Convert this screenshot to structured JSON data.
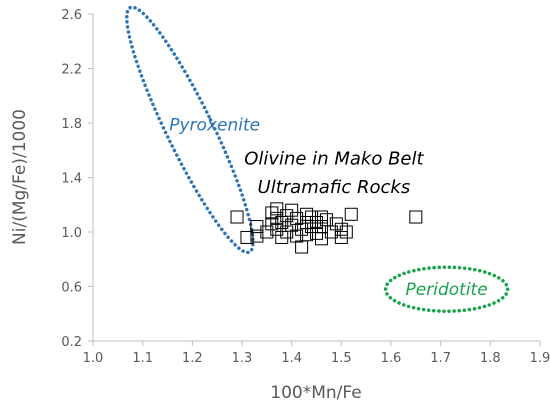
{
  "chart_data": {
    "type": "scatter",
    "title": "",
    "xlabel": "100*Mn/Fe",
    "ylabel": "Ni/(Mg/Fe)/1000",
    "xlim": [
      1.0,
      1.9
    ],
    "ylim": [
      0.2,
      2.6
    ],
    "xticks": [
      "1.0",
      "1.1",
      "1.2",
      "1.3",
      "1.4",
      "1.5",
      "1.6",
      "1.7",
      "1.8",
      "1.9"
    ],
    "yticks": [
      "0.2",
      "0.6",
      "1.0",
      "1.4",
      "1.8",
      "2.2",
      "2.6"
    ],
    "grid": false,
    "legend": "none",
    "marker": "open-square",
    "series": [
      {
        "points": [
          [
            1.29,
            1.11
          ],
          [
            1.31,
            0.96
          ],
          [
            1.33,
            1.04
          ],
          [
            1.33,
            0.97
          ],
          [
            1.35,
            1.0
          ],
          [
            1.36,
            1.14
          ],
          [
            1.36,
            1.06
          ],
          [
            1.37,
            1.17
          ],
          [
            1.37,
            1.1
          ],
          [
            1.37,
            1.02
          ],
          [
            1.38,
            0.96
          ],
          [
            1.38,
            1.07
          ],
          [
            1.39,
            1.12
          ],
          [
            1.39,
            1.0
          ],
          [
            1.4,
            1.16
          ],
          [
            1.4,
            1.05
          ],
          [
            1.41,
            0.97
          ],
          [
            1.41,
            1.1
          ],
          [
            1.42,
            1.02
          ],
          [
            1.42,
            0.89
          ],
          [
            1.43,
            1.13
          ],
          [
            1.43,
            1.07
          ],
          [
            1.43,
            0.98
          ],
          [
            1.44,
            1.04
          ],
          [
            1.44,
            1.11
          ],
          [
            1.45,
            1.07
          ],
          [
            1.45,
            0.99
          ],
          [
            1.46,
            1.11
          ],
          [
            1.46,
            1.04
          ],
          [
            1.46,
            0.95
          ],
          [
            1.47,
            1.09
          ],
          [
            1.48,
            1.0
          ],
          [
            1.49,
            1.06
          ],
          [
            1.5,
            1.02
          ],
          [
            1.5,
            0.96
          ],
          [
            1.51,
            1.0
          ],
          [
            1.52,
            1.13
          ],
          [
            1.65,
            1.11
          ]
        ]
      }
    ],
    "annotations": [
      {
        "text": "Olivine in Mako Belt",
        "x": 1.485,
        "y": 1.54,
        "color": "#000000"
      },
      {
        "text": "Ultramafic Rocks",
        "x": 1.485,
        "y": 1.33,
        "color": "#000000"
      },
      {
        "text": "Pyroxenite",
        "x": 1.245,
        "y": 1.79,
        "color": "#2e75b6"
      },
      {
        "text": "Peridotite",
        "x": 1.712,
        "y": 0.58,
        "color": "#1aa34a"
      }
    ],
    "regions": [
      {
        "label": "Pyroxenite",
        "color": "#2e75b6",
        "center": [
          1.195,
          1.75
        ],
        "rx": 0.2,
        "ry": 0.79,
        "angle_deg": -54
      },
      {
        "label": "Peridotite",
        "color": "#1aa34a",
        "center": [
          1.712,
          0.58
        ],
        "rx": 0.11,
        "ry": 0.26
      }
    ]
  }
}
